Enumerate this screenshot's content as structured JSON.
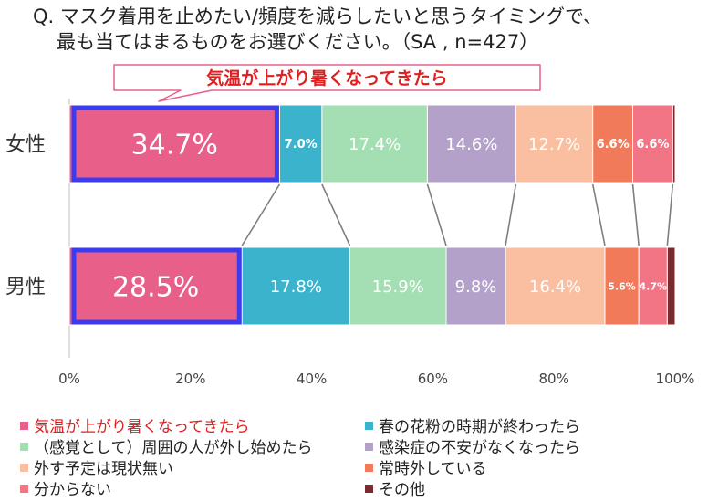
{
  "header": {
    "title_line1": "Q. マスク着用を止めたい/頻度を減らしたいと思うタイミングで、",
    "title_line2": "最も当てはまるものをお選びください。（SA , n=427）"
  },
  "chart_data": {
    "type": "bar",
    "orientation": "horizontal-stacked-100",
    "title": "Q. マスク着用を止めたい/頻度を減らしたいと思うタイミングで、最も当てはまるものをお選びください。（SA , n=427）",
    "callout": "気温が上がり暑くなってきたら",
    "categories": [
      "女性",
      "男性"
    ],
    "xlim": [
      0,
      100
    ],
    "x_ticks": [
      "0%",
      "20%",
      "40%",
      "60%",
      "80%",
      "100%"
    ],
    "series": [
      {
        "name": "気温が上がり暑くなってきたら",
        "color": "#E8608A",
        "values": [
          34.7,
          28.5
        ],
        "labels": [
          "34.7%",
          "28.5%"
        ]
      },
      {
        "name": "春の花粉の時期が終わったら",
        "color": "#3BB3CD",
        "values": [
          7.0,
          17.8
        ],
        "labels": [
          "7.0%",
          "17.8%"
        ]
      },
      {
        "name": "（感覚として）周囲の人が外し始めたら",
        "color": "#A3DFB2",
        "values": [
          17.4,
          15.9
        ],
        "labels": [
          "17.4%",
          "15.9%"
        ]
      },
      {
        "name": "感染症の不安がなくなったら",
        "color": "#B3A1CA",
        "values": [
          14.6,
          9.8
        ],
        "labels": [
          "14.6%",
          "9.8%"
        ]
      },
      {
        "name": "外す予定は現状無い",
        "color": "#F9BFA0",
        "values": [
          12.7,
          16.4
        ],
        "labels": [
          "12.7%",
          "16.4%"
        ]
      },
      {
        "name": "常時外している",
        "color": "#F07A5A",
        "values": [
          6.6,
          5.6
        ],
        "labels": [
          "6.6%",
          "5.6%"
        ]
      },
      {
        "name": "分からない",
        "color": "#F27585",
        "values": [
          6.6,
          4.7
        ],
        "labels": [
          "6.6%",
          "4.7%"
        ]
      },
      {
        "name": "その他",
        "color": "#7A2B2E",
        "values": [
          0.4,
          1.3
        ],
        "labels": [
          "",
          ""
        ]
      }
    ]
  }
}
